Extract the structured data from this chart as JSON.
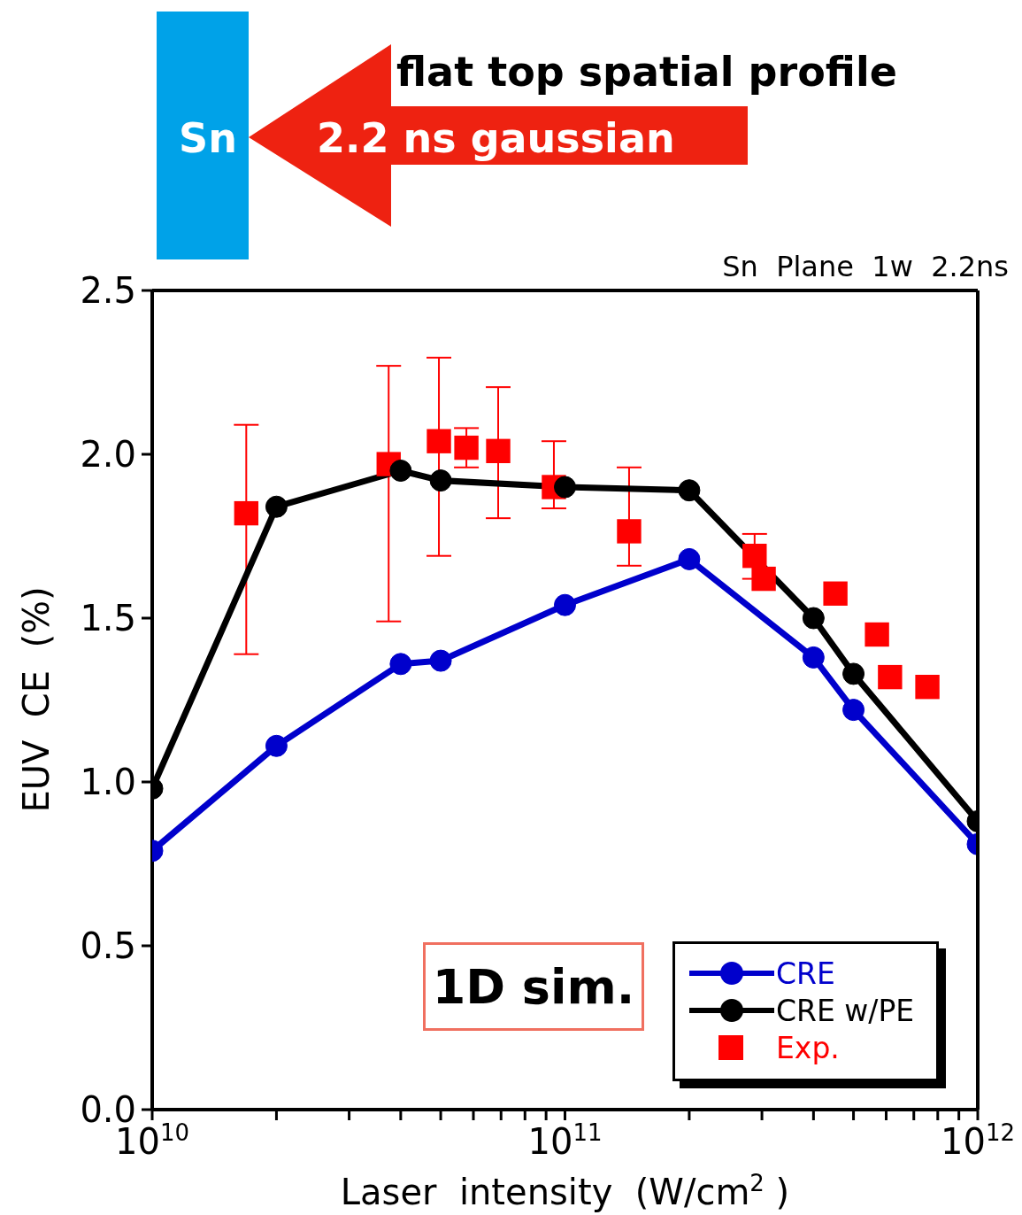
{
  "chart_data": {
    "type": "line",
    "xlabel": "Laser  intensity  (W/cm$^{2}$)",
    "ylabel": "EUV  CE  (%)",
    "annotations": [
      "flat top spatial profile",
      "Sn",
      "2.2 ns gaussian",
      "Sn  Plane  1w  2.2ns",
      "1D sim."
    ],
    "log": "x",
    "xlim": [
      10000000000.0,
      1000000000000.0
    ],
    "xticks": [
      {
        "value": 10000000000.0,
        "label": "10$^{10}$"
      },
      {
        "value": 20000000000.0,
        "label": null
      },
      {
        "value": 30000000000.0,
        "label": null
      },
      {
        "value": 40000000000.0,
        "label": null
      },
      {
        "value": 50000000000.0,
        "label": null
      },
      {
        "value": 60000000000.0,
        "label": null
      },
      {
        "value": 70000000000.0,
        "label": null
      },
      {
        "value": 80000000000.0,
        "label": null
      },
      {
        "value": 90000000000.0,
        "label": null
      },
      {
        "value": 100000000000.0,
        "label": "10$^{11}$"
      },
      {
        "value": 200000000000.0,
        "label": null
      },
      {
        "value": 300000000000.0,
        "label": null
      },
      {
        "value": 400000000000.0,
        "label": null
      },
      {
        "value": 500000000000.0,
        "label": null
      },
      {
        "value": 600000000000.0,
        "label": null
      },
      {
        "value": 700000000000.0,
        "label": null
      },
      {
        "value": 800000000000.0,
        "label": null
      },
      {
        "value": 900000000000.0,
        "label": null
      },
      {
        "value": 1000000000000.0,
        "label": "10$^{12}$"
      }
    ],
    "ylim": [
      0,
      2.5
    ],
    "yticks": [
      {
        "value": 0,
        "label": "0.0"
      },
      {
        "value": 0.5,
        "label": "0.5"
      },
      {
        "value": 1,
        "label": "1.0"
      },
      {
        "value": 1.5,
        "label": "1.5"
      },
      {
        "value": 2,
        "label": "2.0"
      },
      {
        "value": 2.5,
        "label": "2.5"
      }
    ],
    "grid": false,
    "legend": "bottom right",
    "line_style": "solid",
    "series": [
      {
        "name": "CRE",
        "marker": "circle",
        "color": "#0000cc",
        "x": [
          10000000000.0,
          20000000000.0,
          40000000000.0,
          50000000000.0,
          100000000000.0,
          200000000000.0,
          400000000000.0,
          500000000000.0,
          1000000000000.0
        ],
        "values": [
          0.79,
          1.11,
          1.36,
          1.37,
          1.54,
          1.68,
          1.38,
          1.22,
          0.81
        ]
      },
      {
        "name": "CRE w/PE",
        "marker": "circle",
        "color": "#000000",
        "x": [
          10000000000.0,
          20000000000.0,
          40000000000.0,
          50000000000.0,
          100000000000.0,
          200000000000.0,
          400000000000.0,
          500000000000.0,
          1000000000000.0
        ],
        "values": [
          0.98,
          1.84,
          1.95,
          1.92,
          1.9,
          1.89,
          1.5,
          1.33,
          0.88
        ]
      },
      {
        "name": "Exp.",
        "type": "scatter",
        "marker": "square",
        "color": "#ff0000",
        "x": [
          16900000000.0,
          37400000000.0,
          49500000000.0,
          57700000000.0,
          68900000000.0,
          94000000000.0,
          143000000000.0,
          288000000000.0,
          303000000000.0,
          452000000000.0,
          570000000000.0,
          613000000000.0,
          755000000000.0
        ],
        "values": [
          1.82,
          1.97,
          2.04,
          2.02,
          2.01,
          1.9,
          1.765,
          1.69,
          1.62,
          1.575,
          1.45,
          1.32,
          1.29
        ],
        "errors": [
          [
            1.39,
            2.09
          ],
          [
            1.49,
            2.27
          ],
          [
            1.69,
            2.295
          ],
          [
            1.96,
            2.08
          ],
          [
            1.805,
            2.205
          ],
          [
            1.835,
            2.04
          ],
          [
            1.66,
            1.96
          ],
          [
            1.62,
            1.757
          ],
          null,
          null,
          null,
          null,
          null
        ]
      }
    ]
  }
}
